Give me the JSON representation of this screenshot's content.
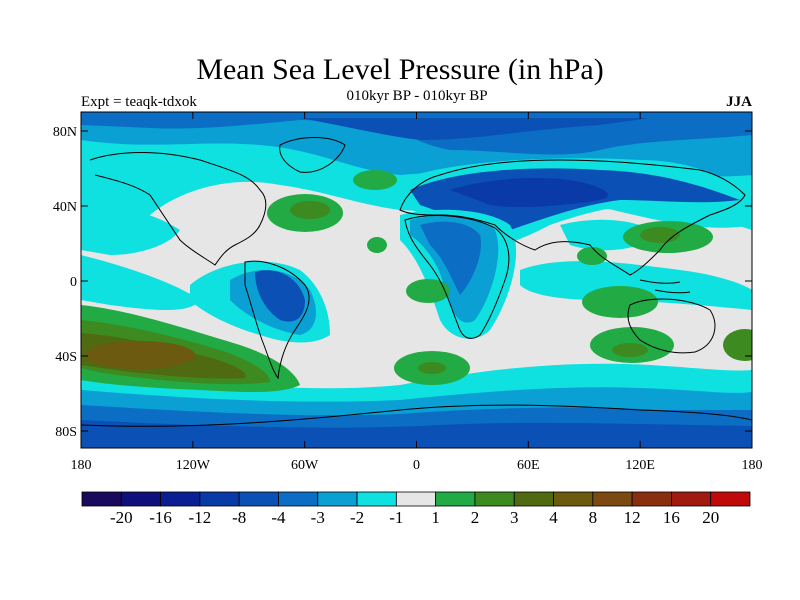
{
  "title": "Mean Sea Level Pressure (in hPa)",
  "left_label": "Expt = teaqk-tdxok",
  "center_label": "010kyr BP - 010kyr BP",
  "right_label": "JJA",
  "lat_ticks": [
    "80N",
    "40N",
    "0",
    "40S",
    "80S"
  ],
  "lon_ticks": [
    "180",
    "120W",
    "60W",
    "0",
    "60E",
    "120E",
    "180"
  ],
  "colorbar": {
    "colors": [
      "#1a0a5e",
      "#0d0f7a",
      "#0a1f94",
      "#0a3aa8",
      "#0b50b5",
      "#0b6ec4",
      "#0aa0d4",
      "#0fe0e0",
      "#e6e6e6",
      "#22aa44",
      "#3d8a20",
      "#4f6a10",
      "#6b5a10",
      "#7a4a10",
      "#8a2e10",
      "#a01a10",
      "#c00a0a"
    ],
    "labels": [
      "-20",
      "-16",
      "-12",
      "-8",
      "-4",
      "-3",
      "-2",
      "-1",
      "1",
      "2",
      "3",
      "4",
      "8",
      "12",
      "16",
      "20"
    ]
  },
  "map_colors": {
    "background": "#e6e6e6",
    "cyan": "#0fe0e0",
    "light_blue": "#0aa0d4",
    "mid_blue": "#0b6ec4",
    "blue": "#0b50b5",
    "dark_blue": "#0a3aa8",
    "green": "#22aa44",
    "dark_green": "#3d8a20",
    "olive": "#4f6a10",
    "brown": "#6b5a10",
    "coast": "#000000"
  }
}
